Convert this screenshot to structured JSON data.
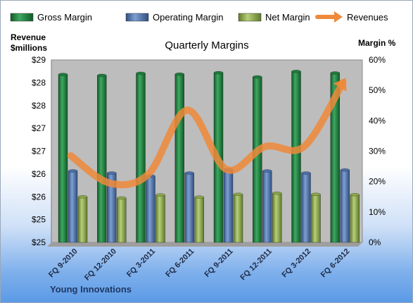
{
  "chart_data": {
    "type": "bar",
    "title": "Quarterly Margins",
    "company": "Young Innovations",
    "left_axis": {
      "title_line1": "Revenue",
      "title_line2": "$millions",
      "tick_labels": [
        "$29",
        "$28",
        "$28",
        "$27",
        "$27",
        "$26",
        "$26",
        "$25",
        "$25"
      ],
      "range": [
        25,
        29
      ]
    },
    "right_axis": {
      "title": "Margin %",
      "tick_labels": [
        "60%",
        "50%",
        "40%",
        "30%",
        "20%",
        "10%",
        "0%"
      ],
      "range": [
        0,
        60
      ]
    },
    "categories": [
      "FQ 9-2010",
      "FQ 12-2010",
      "FQ 3-2011",
      "FQ 6-2011",
      "FQ 9-2011",
      "FQ 12-2011",
      "FQ 3-2012",
      "FQ 6-2012"
    ],
    "series": [
      {
        "name": "Gross Margin",
        "kind": "bar",
        "axis": "right",
        "color": "#1e7a3c",
        "values": [
          55.2,
          54.9,
          55.6,
          55.3,
          55.8,
          54.4,
          56.2,
          55.7
        ]
      },
      {
        "name": "Operating Margin",
        "kind": "bar",
        "axis": "right",
        "color": "#4a6fa8",
        "values": [
          23.5,
          22.8,
          21.8,
          22.8,
          24.0,
          23.5,
          22.8,
          23.8
        ]
      },
      {
        "name": "Net Margin",
        "kind": "bar",
        "axis": "right",
        "color": "#8aa54a",
        "values": [
          15.0,
          14.6,
          15.6,
          14.9,
          15.8,
          16.2,
          15.8,
          15.7
        ]
      },
      {
        "name": "Revenues",
        "kind": "line",
        "axis": "left",
        "color": "#ef8a3a",
        "values": [
          26.9,
          26.3,
          26.5,
          27.9,
          26.6,
          27.1,
          27.1,
          28.5
        ]
      }
    ],
    "grid": false,
    "legend_position": "top"
  }
}
